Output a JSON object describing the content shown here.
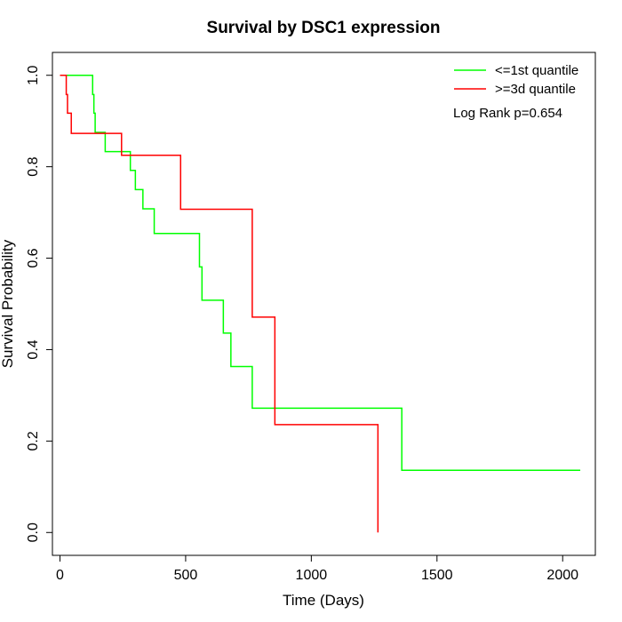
{
  "chart_data": {
    "type": "line",
    "title": "Survival by DSC1 expression",
    "xlabel": "Time (Days)",
    "ylabel": "Survival Probability",
    "xlim": [
      -30,
      2130
    ],
    "ylim": [
      -0.05,
      1.05
    ],
    "xticks": [
      0,
      500,
      1000,
      1500,
      2000
    ],
    "yticks": [
      0.0,
      0.2,
      0.4,
      0.6,
      0.8,
      1.0
    ],
    "ytick_labels": [
      "0.0",
      "0.2",
      "0.4",
      "0.6",
      "0.8",
      "1.0"
    ],
    "legend_position": "top-right",
    "annotation": "Log Rank p=0.654",
    "series": [
      {
        "name": "<=1st quantile",
        "color": "#00ff00",
        "step_points": [
          [
            0,
            1.0
          ],
          [
            130,
            1.0
          ],
          [
            130,
            0.958
          ],
          [
            135,
            0.958
          ],
          [
            135,
            0.917
          ],
          [
            140,
            0.917
          ],
          [
            140,
            0.875
          ],
          [
            180,
            0.875
          ],
          [
            180,
            0.833
          ],
          [
            280,
            0.833
          ],
          [
            280,
            0.792
          ],
          [
            300,
            0.792
          ],
          [
            300,
            0.75
          ],
          [
            330,
            0.75
          ],
          [
            330,
            0.708
          ],
          [
            375,
            0.708
          ],
          [
            375,
            0.654
          ],
          [
            555,
            0.654
          ],
          [
            555,
            0.581
          ],
          [
            565,
            0.581
          ],
          [
            565,
            0.508
          ],
          [
            650,
            0.508
          ],
          [
            650,
            0.436
          ],
          [
            680,
            0.436
          ],
          [
            680,
            0.363
          ],
          [
            765,
            0.363
          ],
          [
            765,
            0.272
          ],
          [
            1360,
            0.272
          ],
          [
            1360,
            0.136
          ],
          [
            2070,
            0.136
          ]
        ]
      },
      {
        "name": ">=3d quantile",
        "color": "#ff0000",
        "step_points": [
          [
            0,
            1.0
          ],
          [
            25,
            1.0
          ],
          [
            25,
            0.958
          ],
          [
            30,
            0.958
          ],
          [
            30,
            0.917
          ],
          [
            45,
            0.917
          ],
          [
            45,
            0.873
          ],
          [
            245,
            0.873
          ],
          [
            245,
            0.825
          ],
          [
            480,
            0.825
          ],
          [
            480,
            0.707
          ],
          [
            765,
            0.707
          ],
          [
            765,
            0.471
          ],
          [
            855,
            0.471
          ],
          [
            855,
            0.236
          ],
          [
            1265,
            0.236
          ],
          [
            1265,
            0.0
          ]
        ]
      }
    ]
  }
}
